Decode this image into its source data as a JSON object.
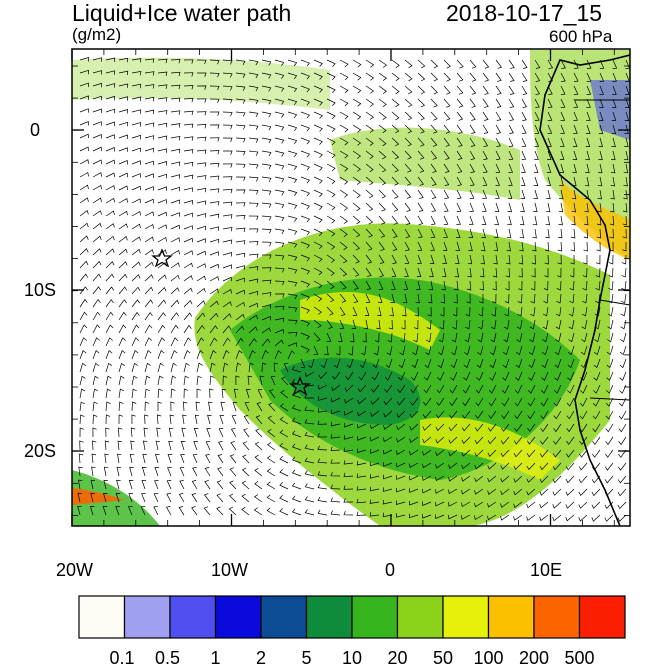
{
  "header": {
    "title": "Liquid+Ice water path",
    "units": "(g/m2)",
    "datetime": "2018-10-17_15",
    "level": "600 hPa"
  },
  "axes": {
    "lon_ticks": [
      "20W",
      "10W",
      "0",
      "10E"
    ],
    "lat_ticks": [
      "0",
      "10S",
      "20S"
    ]
  },
  "colorbar": {
    "labels": [
      "0.1",
      "0.5",
      "1",
      "2",
      "5",
      "10",
      "20",
      "50",
      "100",
      "200",
      "500"
    ],
    "colors": [
      "#fdfdf5",
      "#a0a0f0",
      "#5050f0",
      "#0a0adc",
      "#0c4c94",
      "#0e8c3c",
      "#36b41e",
      "#8cd21a",
      "#e6f00a",
      "#fcc000",
      "#fc6400",
      "#fc1e00"
    ]
  },
  "markers": [
    "star",
    "star"
  ]
}
